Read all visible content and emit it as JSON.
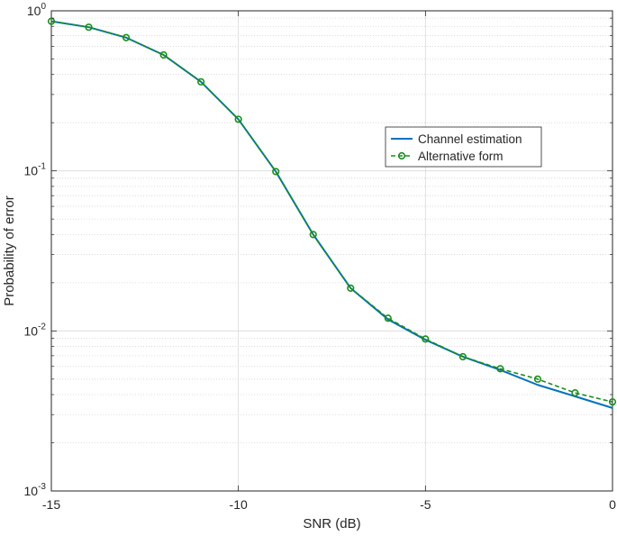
{
  "chart_data": {
    "type": "line",
    "xlabel": "SNR (dB)",
    "ylabel": "Probability of error",
    "xlim": [
      -15,
      0
    ],
    "ylim": [
      0.001,
      1
    ],
    "yscale": "log",
    "grid": true,
    "legend_position": "upper-right",
    "x_ticks": [
      -15,
      -10,
      -5,
      0
    ],
    "x_tick_labels": [
      "-15",
      "-10",
      "-5",
      "0"
    ],
    "y_ticks": [
      {
        "value": 1,
        "base": "10",
        "exp": "0"
      },
      {
        "value": 0.1,
        "base": "10",
        "exp": "-1"
      },
      {
        "value": 0.01,
        "base": "10",
        "exp": "-2"
      },
      {
        "value": 0.001,
        "base": "10",
        "exp": "-3"
      }
    ],
    "x": [
      -15,
      -14,
      -13,
      -12,
      -11,
      -10,
      -9,
      -8,
      -7,
      -6,
      -5,
      -4,
      -3,
      -2,
      -1,
      0
    ],
    "series": [
      {
        "name": "Channel estimation",
        "color": "#0072BD",
        "style": "solid",
        "marker": "none",
        "values": [
          0.86,
          0.79,
          0.68,
          0.53,
          0.36,
          0.21,
          0.099,
          0.04,
          0.0185,
          0.0118,
          0.0088,
          0.0069,
          0.0057,
          0.0046,
          0.0039,
          0.0033
        ]
      },
      {
        "name": "Alternative form",
        "color": "#1E8C1E",
        "style": "dashed",
        "marker": "circle",
        "values": [
          0.86,
          0.79,
          0.68,
          0.53,
          0.36,
          0.21,
          0.099,
          0.04,
          0.0185,
          0.012,
          0.0089,
          0.0069,
          0.0058,
          0.005,
          0.0041,
          0.0036
        ]
      }
    ]
  }
}
